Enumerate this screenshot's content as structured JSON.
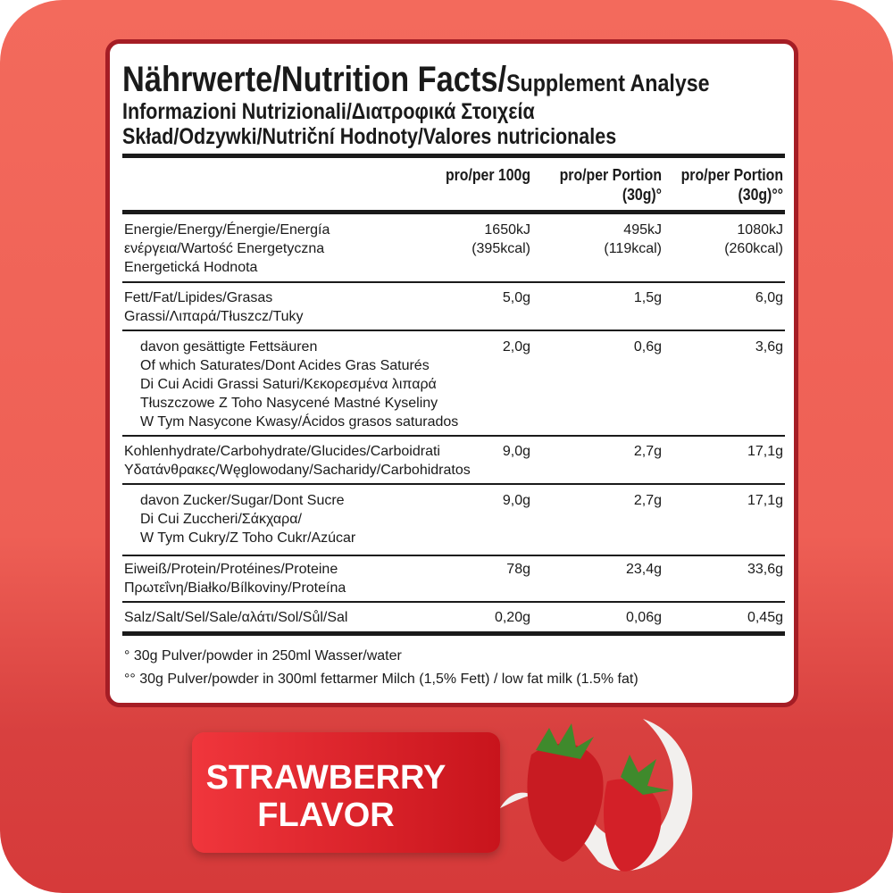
{
  "header": {
    "title_main": "Nährwerte/Nutrition Facts/",
    "title_suffix": "Supplement Analyse",
    "line2": "Informazioni Nutrizionali/Διατροφικά Στοιχεία",
    "line3": "Skład/Odzywki/Nutriční Hodnoty/Valores nutricionales"
  },
  "columns": [
    "pro/per 100g",
    "pro/per Portion\n(30g)°",
    "pro/per Portion\n(30g)°°"
  ],
  "rows": [
    {
      "label": "Energie/Energy/Énergie/Energía\nενέργεια/Wartość Energetyczna\nEnergetická Hodnota",
      "values": [
        "1650kJ\n(395kcal)",
        "495kJ\n(119kcal)",
        "1080kJ\n(260kcal)"
      ]
    },
    {
      "label": "Fett/Fat/Lipides/Grasas\nGrassi/Λιπαρά/Tłuszcz/Tuky",
      "values": [
        "5,0g",
        "1,5g",
        "6,0g"
      ]
    },
    {
      "label": "davon gesättigte Fettsäuren\nOf which Saturates/Dont Acides Gras Saturés\nDi Cui Acidi Grassi Saturi/Κεκορεσμένα λιπαρά\nTłuszczowe Z Toho Nasycené Mastné Kyseliny\nW Tym Nasycone Kwasy/Ácidos grasos saturados",
      "values": [
        "2,0g",
        "0,6g",
        "3,6g"
      ]
    },
    {
      "label": "Kohlenhydrate/Carbohydrate/Glucides/Carboidrati\nΥδατάνθρακες/Węglowodany/Sacharidy/Carbohidratos",
      "values": [
        "9,0g",
        "2,7g",
        "17,1g"
      ]
    },
    {
      "label": "davon Zucker/Sugar/Dont Sucre\nDi Cui Zuccheri/Σάκχαρα/\nW Tym Cukry/Z Toho Cukr/Azúcar",
      "values": [
        "9,0g",
        "2,7g",
        "17,1g"
      ]
    },
    {
      "label": "Eiweiß/Protein/Protéines/Proteine\nΠρωτεΐνη/Białko/Bílkoviny/Proteína",
      "values": [
        "78g",
        "23,4g",
        "33,6g"
      ]
    },
    {
      "label": "Salz/Salt/Sel/Sale/αλάτι/Sol/Sůl/Sal",
      "values": [
        "0,20g",
        "0,06g",
        "0,45g"
      ]
    }
  ],
  "footnotes": [
    "°  30g Pulver/powder in 250ml Wasser/water",
    "°° 30g Pulver/powder in 300ml fettarmer Milch (1,5% Fett)  /  low fat milk (1.5% fat)"
  ],
  "flavor": {
    "line1": "STRAWBERRY",
    "line2": "FLAVOR"
  },
  "colors": {
    "background": "#ee5f55",
    "border": "#a51d25",
    "banner": "#e0262d"
  }
}
